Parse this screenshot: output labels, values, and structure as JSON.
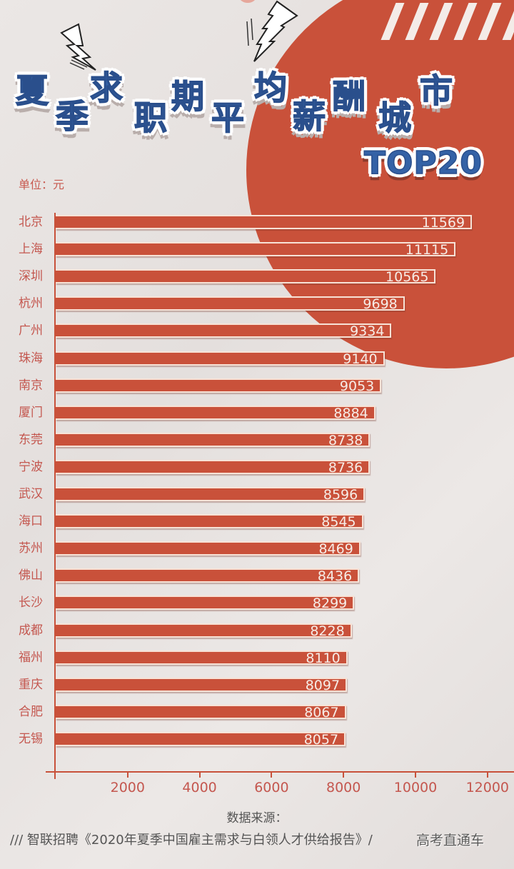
{
  "title": {
    "chars": [
      "夏",
      "季",
      "求",
      "职",
      "期",
      "平",
      "均",
      "薪",
      "酬",
      "城",
      "市"
    ],
    "full": "夏季求职期平均薪酬城市",
    "suffix": "TOP20"
  },
  "unit_label": "单位：元",
  "colors": {
    "bar": "#c9513a",
    "title_blue": "#3462a6",
    "background": "#e9e4e2",
    "label_text": "#c4574f"
  },
  "chart_data": {
    "type": "bar",
    "orientation": "horizontal",
    "title": "夏季求职期平均薪酬城市TOP20",
    "unit": "元",
    "categories": [
      "北京",
      "上海",
      "深圳",
      "杭州",
      "广州",
      "珠海",
      "南京",
      "厦门",
      "东莞",
      "宁波",
      "武汉",
      "海口",
      "苏州",
      "佛山",
      "长沙",
      "成都",
      "福州",
      "重庆",
      "合肥",
      "无锡"
    ],
    "values": [
      11569,
      11115,
      10565,
      9698,
      9334,
      9140,
      9053,
      8884,
      8738,
      8736,
      8596,
      8545,
      8469,
      8436,
      8299,
      8228,
      8110,
      8097,
      8067,
      8057
    ],
    "xlabel": "",
    "ylabel": "",
    "xlim": [
      0,
      12000
    ],
    "x_ticks": [
      2000,
      4000,
      6000,
      8000,
      10000,
      12000
    ],
    "grid": false,
    "legend": null,
    "data_labels": true
  },
  "axis": {
    "ticks": [
      "2000",
      "4000",
      "6000",
      "8000",
      "10000",
      "12000"
    ]
  },
  "source": {
    "label": "数据来源：",
    "prefix": "/// ",
    "text": "智联招聘《2020年夏季中国雇主需求与白领人才供给报告》",
    "suffix": "/"
  },
  "watermark": "高考直通车"
}
